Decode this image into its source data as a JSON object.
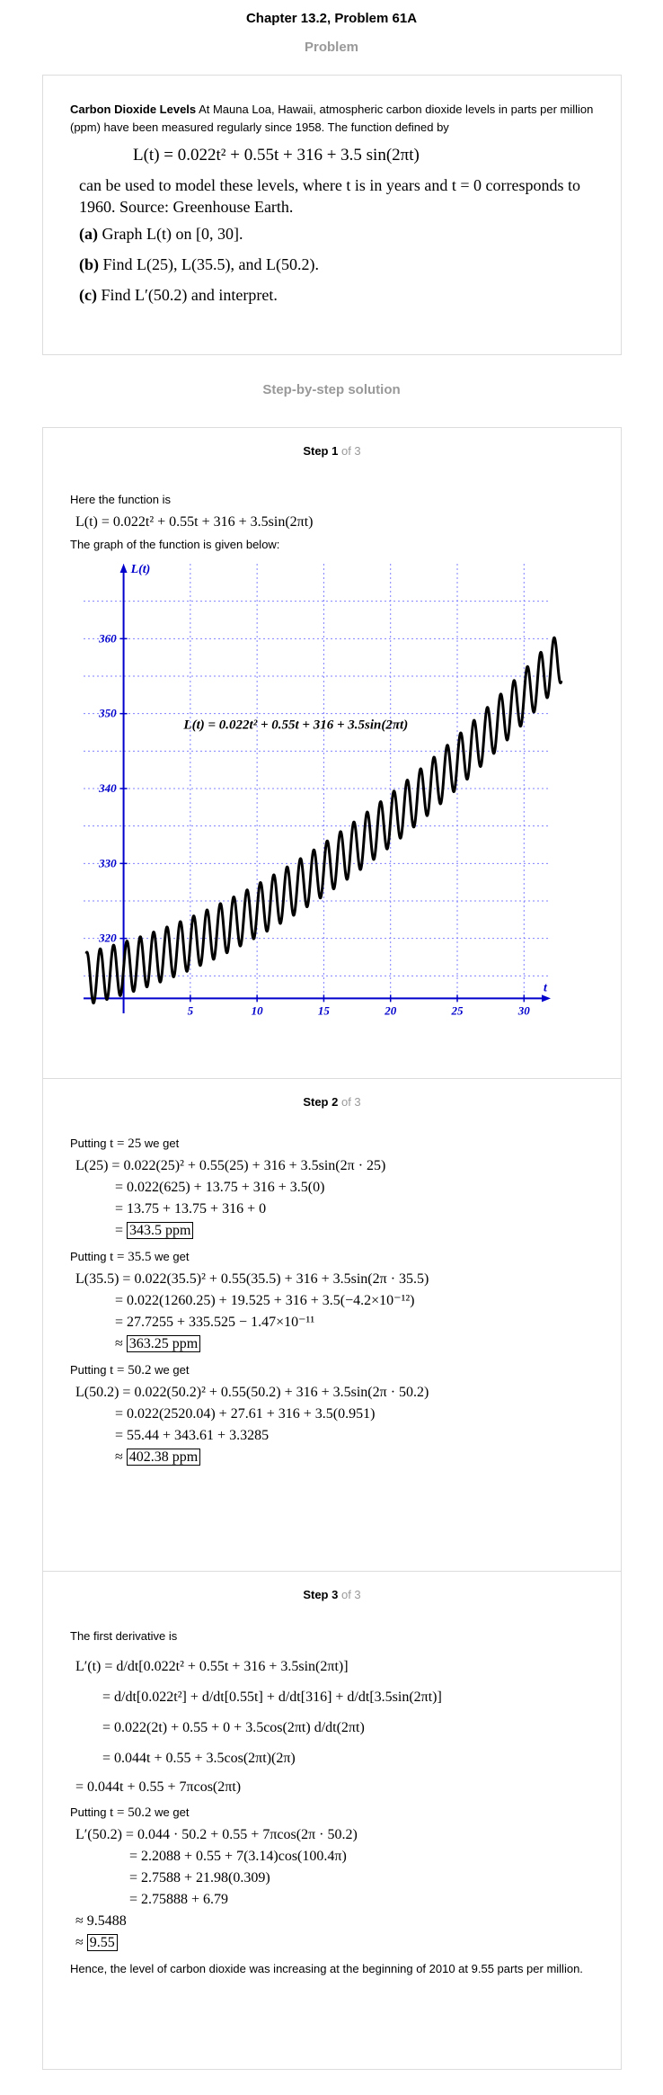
{
  "header": {
    "title": "Chapter 13.2, Problem 61A",
    "problem_label": "Problem"
  },
  "problem": {
    "bold_title": "Carbon Dioxide Levels",
    "intro": "At Mauna Loa, Hawaii, atmospheric carbon dioxide levels in parts per million (ppm) have been measured regularly since 1958. The function defined by",
    "formula": "L(t) = 0.022t² + 0.55t + 316 + 3.5 sin(2πt)",
    "text": "can be used to model these levels, where t is in years and t = 0 corresponds to 1960. Source: Greenhouse Earth.",
    "parts": [
      {
        "label": "(a)",
        "text": "Graph L(t) on [0, 30]."
      },
      {
        "label": "(b)",
        "text": "Find L(25), L(35.5), and L(50.2)."
      },
      {
        "label": "(c)",
        "text": "Find L′(50.2) and interpret."
      }
    ]
  },
  "solution_title": "Step-by-step solution",
  "step1": {
    "head": "Step 1",
    "of": "of 3",
    "intro": "Here the function is",
    "formula": "L(t) = 0.022t² + 0.55t + 316 + 3.5sin(2πt)",
    "graph_intro": "The graph of the function is given below:"
  },
  "chart_data": {
    "type": "line",
    "function": "L(t) = 0.022t² + 0.55t + 316 + 3.5sin(2πt)",
    "annotation": "L(t) = 0.022t² + 0.55t + 316 + 3.5sin(2πt)",
    "xlabel": "t",
    "ylabel": "L(t)",
    "xticks": [
      5,
      10,
      15,
      20,
      25,
      30
    ],
    "yticks": [
      320,
      330,
      340,
      350,
      360
    ],
    "xlim": [
      -3,
      32
    ],
    "ylim": [
      310,
      370
    ],
    "grid": true,
    "colors": {
      "axis": "#0000cc",
      "curve": "#000000",
      "grid": "#8080ff"
    }
  },
  "step2": {
    "head": "Step 2",
    "of": "of 3",
    "blocks": [
      {
        "put": "Putting",
        "tval": "t = 25",
        "we_get": "we get",
        "lines": [
          "L(25) = 0.022(25)² + 0.55(25) + 316 + 3.5sin(2π · 25)",
          "= 0.022(625) + 13.75 + 316 + 3.5(0)",
          "= 13.75 + 13.75 + 316 + 0",
          "="
        ],
        "result": "343.5 ppm"
      },
      {
        "put": "Putting",
        "tval": "t = 35.5",
        "we_get": "we get",
        "lines": [
          "L(35.5) = 0.022(35.5)² + 0.55(35.5) + 316 + 3.5sin(2π · 35.5)",
          "= 0.022(1260.25) + 19.525 + 316 + 3.5(−4.2×10⁻¹²)",
          "= 27.7255 + 335.525 − 1.47×10⁻¹¹",
          "≈"
        ],
        "result": "363.25 ppm"
      },
      {
        "put": "Putting",
        "tval": "t = 50.2",
        "we_get": "we get",
        "lines": [
          "L(50.2) = 0.022(50.2)² + 0.55(50.2) + 316 + 3.5sin(2π · 50.2)",
          "= 0.022(2520.04) + 27.61 + 316 + 3.5(0.951)",
          "= 55.44 + 343.61 + 3.3285",
          "≈"
        ],
        "result": "402.38 ppm"
      }
    ]
  },
  "step3": {
    "head": "Step 3",
    "of": "of 3",
    "intro": "The first derivative is",
    "deriv_lines": [
      "L′(t) = d/dt[0.022t² + 0.55t + 316 + 3.5sin(2πt)]",
      "= d/dt[0.022t²] + d/dt[0.55t] + d/dt[316] + d/dt[3.5sin(2πt)]",
      "= 0.022(2t) + 0.55 + 0 + 3.5cos(2πt) d/dt(2πt)",
      "= 0.044t + 0.55 + 3.5cos(2πt)(2π)",
      "= 0.044t + 0.55 + 7πcos(2πt)"
    ],
    "put": "Putting",
    "tval": "t = 50.2",
    "we_get": "we get",
    "eval_lines": [
      "L′(50.2) = 0.044 · 50.2 + 0.55 + 7πcos(2π · 50.2)",
      "= 2.2088 + 0.55 + 7(3.14)cos(100.4π)",
      "= 2.7588 + 21.98(0.309)",
      "= 2.75888 + 6.79",
      "≈ 9.5488",
      "≈"
    ],
    "result": "9.55",
    "conclusion": "Hence, the level of carbon dioxide was increasing at the beginning of 2010 at 9.55 parts per million."
  }
}
